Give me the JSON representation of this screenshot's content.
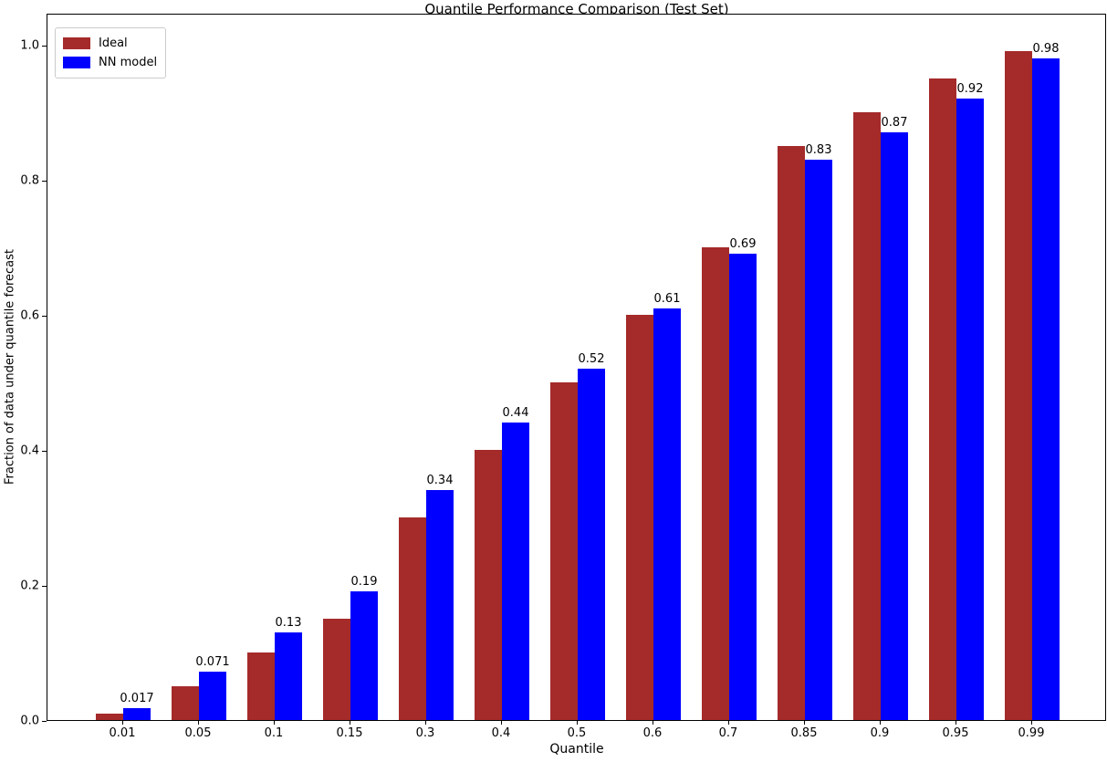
{
  "chart_data": {
    "type": "bar",
    "title": "Quantile Performance Comparison (Test Set)",
    "xlabel": "Quantile",
    "ylabel": "Fraction of data under quantile forecast",
    "categories": [
      "0.01",
      "0.05",
      "0.1",
      "0.15",
      "0.3",
      "0.4",
      "0.5",
      "0.6",
      "0.7",
      "0.85",
      "0.9",
      "0.95",
      "0.99"
    ],
    "series": [
      {
        "name": "Ideal",
        "color": "#A52A2A",
        "values": [
          0.01,
          0.05,
          0.1,
          0.15,
          0.3,
          0.4,
          0.5,
          0.6,
          0.7,
          0.85,
          0.9,
          0.95,
          0.99
        ]
      },
      {
        "name": "NN model",
        "color": "#0000FF",
        "values": [
          0.017,
          0.071,
          0.13,
          0.19,
          0.34,
          0.44,
          0.52,
          0.61,
          0.69,
          0.83,
          0.87,
          0.92,
          0.98
        ]
      }
    ],
    "bar_labels": [
      "0.017",
      "0.071",
      "0.13",
      "0.19",
      "0.34",
      "0.44",
      "0.52",
      "0.61",
      "0.69",
      "0.83",
      "0.87",
      "0.92",
      "0.98"
    ],
    "yticks": [
      "0.0",
      "0.2",
      "0.4",
      "0.6",
      "0.8",
      "1.0"
    ],
    "ylim": [
      0,
      1.047
    ],
    "legend_position": "upper left",
    "grid": false,
    "text_color": "#000000",
    "background_color": "#ffffff"
  }
}
